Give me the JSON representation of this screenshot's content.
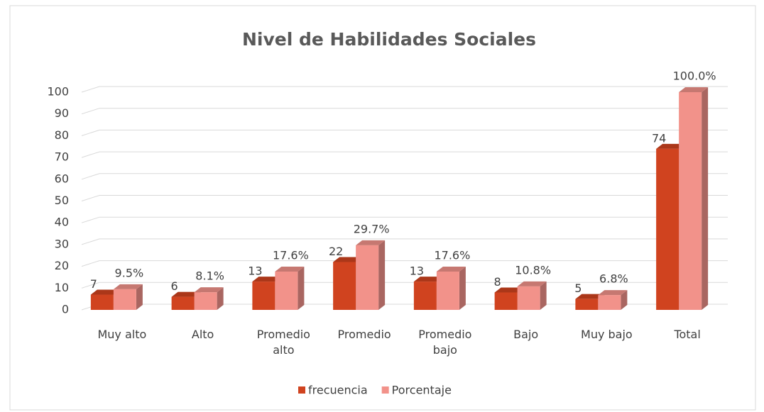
{
  "chart_data": {
    "type": "bar3d",
    "title": "Nivel de Habilidades Sociales",
    "categories": [
      "Muy alto",
      "Alto",
      "Promedio alto",
      "Promedio",
      "Promedio bajo",
      "Bajo",
      "Muy bajo",
      "Total"
    ],
    "series": [
      {
        "name": "frecuencia",
        "color": "#d0431f",
        "values": [
          7,
          6,
          13,
          22,
          13,
          8,
          5,
          74
        ]
      },
      {
        "name": "Porcentaje",
        "color": "#f2928a",
        "values": [
          9.5,
          8.1,
          17.6,
          29.7,
          17.6,
          10.8,
          6.8,
          100
        ],
        "value_labels": [
          "9.5%",
          "8.1%",
          "17.6%",
          "29.7%",
          "17.6%",
          "10.8%",
          "6.8%",
          "100.0%"
        ]
      }
    ],
    "ylim": [
      0,
      100
    ],
    "yticks": [
      0,
      10,
      20,
      30,
      40,
      50,
      60,
      70,
      80,
      90,
      100
    ],
    "grid": true,
    "legend": "bottom"
  }
}
